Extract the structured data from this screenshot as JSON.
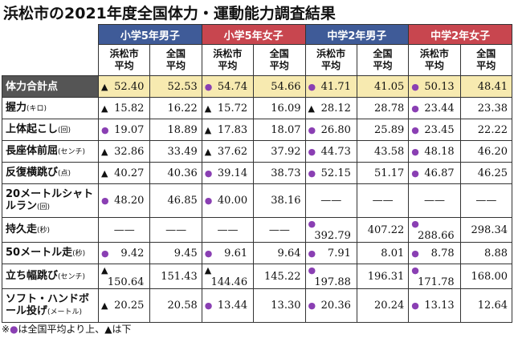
{
  "title": "浜松市の2021年度全国体力・運動能力調査結果",
  "groups": [
    "小学5年男子",
    "小学5年女子",
    "中学2年男子",
    "中学2年女子"
  ],
  "subheaders": [
    "浜松市\n平均",
    "全国\n平均"
  ],
  "rows": [
    {
      "label": "体力合計点",
      "cells": [
        {
          "mark": "▲",
          "value": "52.40"
        },
        "52.53",
        {
          "mark": "●",
          "value": "54.74"
        },
        "54.66",
        {
          "mark": "●",
          "value": "41.71"
        },
        "41.05",
        {
          "mark": "●",
          "value": "50.13"
        },
        "48.41"
      ]
    },
    {
      "label": "握力",
      "unit": "(キロ)",
      "cells": [
        {
          "mark": "▲",
          "value": "15.82"
        },
        "16.22",
        {
          "mark": "▲",
          "value": "15.72"
        },
        "16.09",
        {
          "mark": "▲",
          "value": "28.12"
        },
        "28.78",
        {
          "mark": "●",
          "value": "23.44"
        },
        "23.38"
      ]
    },
    {
      "label": "上体起こし",
      "unit": "(回)",
      "cells": [
        {
          "mark": "●",
          "value": "19.07"
        },
        "18.89",
        {
          "mark": "▲",
          "value": "17.83"
        },
        "18.07",
        {
          "mark": "●",
          "value": "26.80"
        },
        "25.89",
        {
          "mark": "●",
          "value": "23.45"
        },
        "22.22"
      ]
    },
    {
      "label": "長座体前屈",
      "unit": "(センチ)",
      "cells": [
        {
          "mark": "▲",
          "value": "32.86"
        },
        "33.49",
        {
          "mark": "▲",
          "value": "37.62"
        },
        "37.92",
        {
          "mark": "●",
          "value": "44.73"
        },
        "43.58",
        {
          "mark": "●",
          "value": "48.18"
        },
        "46.20"
      ]
    },
    {
      "label": "反復横跳び",
      "unit": "(点)",
      "cells": [
        {
          "mark": "▲",
          "value": "40.27"
        },
        "40.36",
        {
          "mark": "●",
          "value": "39.14"
        },
        "38.73",
        {
          "mark": "●",
          "value": "52.15"
        },
        "51.17",
        {
          "mark": "●",
          "value": "46.87"
        },
        "46.25"
      ]
    },
    {
      "label": "20メートルシャトルラン",
      "unit": "(回)",
      "cells": [
        {
          "mark": "●",
          "value": "48.20"
        },
        "46.85",
        {
          "mark": "●",
          "value": "40.00"
        },
        "38.16",
        {
          "value": "——"
        },
        "——",
        {
          "value": "——"
        },
        "——"
      ]
    },
    {
      "label": "持久走",
      "unit": "(秒)",
      "cells": [
        {
          "value": "——"
        },
        "——",
        {
          "value": "——"
        },
        "——",
        {
          "mark": "●",
          "value": "392.79"
        },
        "407.22",
        {
          "mark": "●",
          "value": "288.66"
        },
        "298.34"
      ]
    },
    {
      "label": "50メートル走",
      "unit": "(秒)",
      "cells": [
        {
          "mark": "●",
          "value": "9.42"
        },
        "9.45",
        {
          "mark": "●",
          "value": "9.61"
        },
        "9.64",
        {
          "mark": "●",
          "value": "7.91"
        },
        "8.01",
        {
          "mark": "●",
          "value": "8.78"
        },
        "8.88"
      ]
    },
    {
      "label": "立ち幅跳び",
      "unit": "(センチ)",
      "cells": [
        {
          "mark": "▲",
          "value": "150.64"
        },
        "151.43",
        {
          "mark": "▲",
          "value": "144.46"
        },
        "145.22",
        {
          "mark": "●",
          "value": "197.88"
        },
        "196.31",
        {
          "mark": "●",
          "value": "171.78"
        },
        "168.00"
      ]
    },
    {
      "label": "ソフト・ハンドボール投げ",
      "unit": "(メートル)",
      "cells": [
        {
          "mark": "▲",
          "value": "20.25"
        },
        "20.58",
        {
          "mark": "●",
          "value": "13.44"
        },
        "13.30",
        {
          "mark": "●",
          "value": "20.36"
        },
        "20.24",
        {
          "mark": "●",
          "value": "13.13"
        },
        "12.64"
      ]
    }
  ],
  "footnote": {
    "prefix": "※",
    "circle": "●",
    "text": "は全国平均より上、▲は下"
  }
}
